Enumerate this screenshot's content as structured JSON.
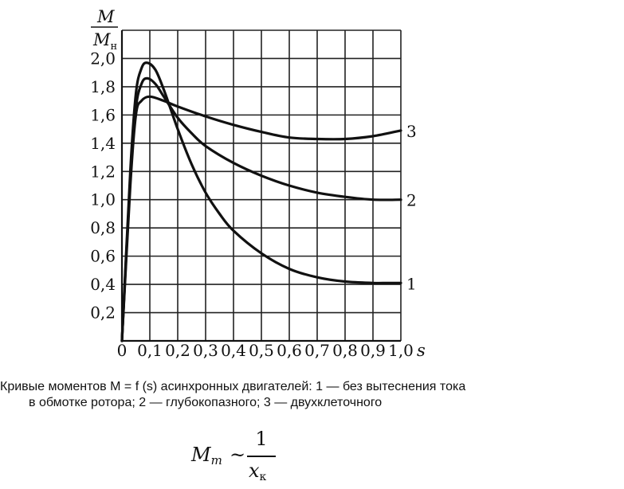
{
  "chart_data": {
    "type": "line",
    "title": "",
    "xlabel": "s",
    "ylabel_num": "M",
    "ylabel_den_main": "M",
    "ylabel_den_sub": "н",
    "xlim": [
      0,
      1.0
    ],
    "ylim": [
      0,
      2.2
    ],
    "xticks": [
      0,
      0.1,
      0.2,
      0.3,
      0.4,
      0.5,
      0.6,
      0.7,
      0.8,
      0.9,
      1.0
    ],
    "xtick_labels": [
      "0",
      "0,1",
      "0,2",
      "0,3",
      "0,4",
      "0,5",
      "0,6",
      "0,7",
      "0,8",
      "0,9",
      "1,0"
    ],
    "yticks": [
      0.2,
      0.4,
      0.6,
      0.8,
      1.0,
      1.2,
      1.4,
      1.6,
      1.8,
      2.0
    ],
    "ytick_labels": [
      "0,2",
      "0,4",
      "0,6",
      "0,8",
      "1,0",
      "1,2",
      "1,4",
      "1,6",
      "1,8",
      "2,0"
    ],
    "grid": true,
    "series": [
      {
        "name": "1",
        "x": [
          0,
          0.03,
          0.05,
          0.07,
          0.09,
          0.12,
          0.15,
          0.2,
          0.25,
          0.3,
          0.35,
          0.4,
          0.5,
          0.6,
          0.7,
          0.8,
          0.9,
          0.95,
          1.0
        ],
        "y": [
          0,
          1.2,
          1.75,
          1.93,
          1.97,
          1.92,
          1.78,
          1.5,
          1.25,
          1.05,
          0.9,
          0.78,
          0.62,
          0.51,
          0.45,
          0.42,
          0.41,
          0.41,
          0.41
        ]
      },
      {
        "name": "2",
        "x": [
          0,
          0.03,
          0.05,
          0.07,
          0.09,
          0.12,
          0.15,
          0.2,
          0.25,
          0.3,
          0.4,
          0.5,
          0.6,
          0.7,
          0.8,
          0.9,
          1.0
        ],
        "y": [
          0,
          1.15,
          1.65,
          1.82,
          1.86,
          1.82,
          1.73,
          1.58,
          1.47,
          1.38,
          1.26,
          1.17,
          1.1,
          1.05,
          1.02,
          1.0,
          1.0
        ]
      },
      {
        "name": "3",
        "x": [
          0,
          0.03,
          0.05,
          0.07,
          0.1,
          0.15,
          0.2,
          0.3,
          0.4,
          0.5,
          0.6,
          0.7,
          0.8,
          0.9,
          1.0
        ],
        "y": [
          0,
          1.1,
          1.6,
          1.7,
          1.73,
          1.7,
          1.66,
          1.59,
          1.53,
          1.48,
          1.44,
          1.43,
          1.43,
          1.45,
          1.49
        ]
      }
    ]
  },
  "caption": {
    "line1": "Кривые моментов M = f (s) асинхронных двигателей: 1 — без вытеснения тока",
    "line2": "в обмотке ротора; 2 — глубокопазного; 3 — двухклеточного"
  },
  "formula": {
    "lhs_main": "M",
    "lhs_sub": "m",
    "relation": "~",
    "numerator": "1",
    "den_main": "x",
    "den_sub": "к"
  }
}
